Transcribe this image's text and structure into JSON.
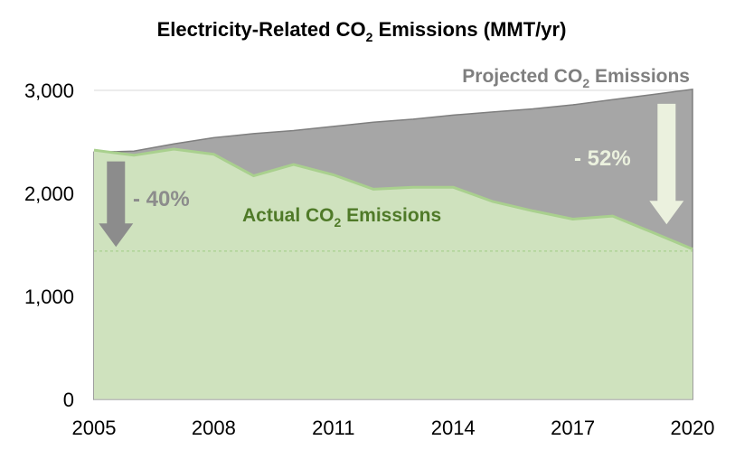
{
  "chart_data": {
    "type": "area",
    "title": "Electricity-Related CO₂ Emissions (MMT/yr)",
    "title_main": "Electricity-Related CO",
    "title_sub": "2",
    "title_tail": " Emissions (MMT/yr)",
    "xlabel": "",
    "ylabel": "",
    "x_ticks": [
      "2005",
      "2008",
      "2011",
      "2014",
      "2017",
      "2020"
    ],
    "y_ticks": [
      "0",
      "1,000",
      "2,000",
      "3,000"
    ],
    "y_tick_values": [
      0,
      1000,
      2000,
      3000
    ],
    "xlim": [
      2005,
      2020
    ],
    "ylim": [
      0,
      3000
    ],
    "grid": true,
    "series": [
      {
        "name": "Projected CO₂ Emissions",
        "label_main": "Projected CO",
        "label_sub": "2",
        "label_tail": " Emissions",
        "color": "#a6a6a6",
        "x": [
          2005,
          2006,
          2007,
          2008,
          2009,
          2010,
          2011,
          2012,
          2013,
          2014,
          2015,
          2016,
          2017,
          2018,
          2019,
          2020
        ],
        "values": [
          2400,
          2410,
          2480,
          2540,
          2580,
          2610,
          2650,
          2690,
          2720,
          2760,
          2790,
          2820,
          2860,
          2910,
          2960,
          3010
        ]
      },
      {
        "name": "Actual CO₂ Emissions",
        "label_main": "Actual CO",
        "label_sub": "2",
        "label_tail": " Emissions",
        "color": "#cfe2be",
        "line_color": "#a9d08e",
        "x": [
          2005,
          2006,
          2007,
          2008,
          2009,
          2010,
          2011,
          2012,
          2013,
          2014,
          2015,
          2016,
          2017,
          2018,
          2019,
          2020
        ],
        "values": [
          2420,
          2370,
          2430,
          2380,
          2170,
          2280,
          2180,
          2040,
          2060,
          2060,
          1920,
          1830,
          1750,
          1780,
          1620,
          1460
        ]
      }
    ],
    "reference_line": {
      "value": 1440,
      "color": "#a9d08e"
    },
    "annotations": [
      {
        "id": "drop-actual",
        "text": "- 40%",
        "year": 2005.55,
        "from": 2310,
        "to": 1480,
        "color": "#8c8c8c"
      },
      {
        "id": "drop-projected",
        "text": "- 52%",
        "year": 2019.35,
        "from": 2870,
        "to": 1700,
        "color": "#ebf1de"
      }
    ]
  }
}
